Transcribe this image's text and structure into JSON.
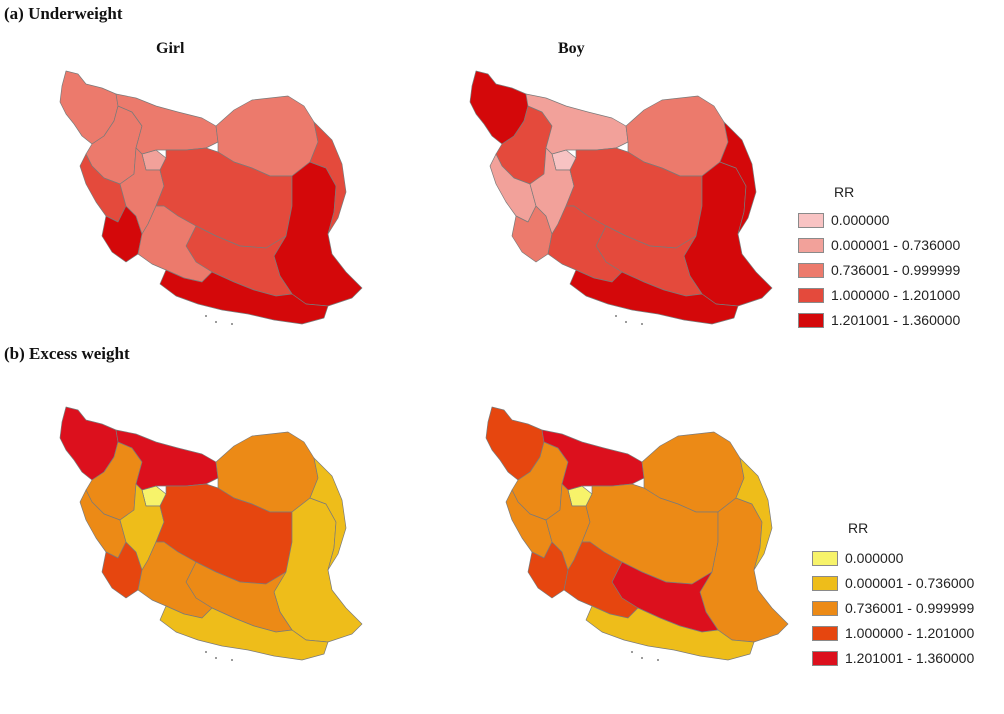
{
  "panels": [
    {
      "title": "(a) Underweight",
      "maps": [
        {
          "title": "Girl",
          "regions": [
            {
              "name": "nw-border",
              "cls": 2
            },
            {
              "name": "west-1",
              "cls": 2
            },
            {
              "name": "west-2",
              "cls": 3
            },
            {
              "name": "tehran",
              "cls": 1
            },
            {
              "name": "north",
              "cls": 2
            },
            {
              "name": "northeast",
              "cls": 2
            },
            {
              "name": "khuzestan",
              "cls": 4
            },
            {
              "name": "zagros",
              "cls": 2
            },
            {
              "name": "center",
              "cls": 3
            },
            {
              "name": "southeast",
              "cls": 4
            },
            {
              "name": "south",
              "cls": 3
            },
            {
              "name": "fars",
              "cls": 2
            },
            {
              "name": "hormozgan",
              "cls": 4
            },
            {
              "name": "east",
              "cls": 3
            }
          ]
        },
        {
          "title": "Boy",
          "regions": [
            {
              "name": "nw-border",
              "cls": 4
            },
            {
              "name": "west-1",
              "cls": 3
            },
            {
              "name": "west-2",
              "cls": 1
            },
            {
              "name": "tehran",
              "cls": 0
            },
            {
              "name": "north",
              "cls": 1
            },
            {
              "name": "northeast",
              "cls": 2
            },
            {
              "name": "khuzestan",
              "cls": 2
            },
            {
              "name": "zagros",
              "cls": 1
            },
            {
              "name": "center",
              "cls": 3
            },
            {
              "name": "southeast",
              "cls": 4
            },
            {
              "name": "south",
              "cls": 3
            },
            {
              "name": "fars",
              "cls": 3
            },
            {
              "name": "hormozgan",
              "cls": 4
            },
            {
              "name": "east",
              "cls": 4
            }
          ]
        }
      ],
      "legend": {
        "title": "RR",
        "items": [
          {
            "label": "0.000000",
            "color": "#f8c3c3"
          },
          {
            "label": "0.000001 - 0.736000",
            "color": "#f2a19a"
          },
          {
            "label": "0.736001 - 0.999999",
            "color": "#ec7a6c"
          },
          {
            "label": "1.000000 - 1.201000",
            "color": "#e44a3c"
          },
          {
            "label": "1.201001 - 1.360000",
            "color": "#d4080a"
          }
        ]
      }
    },
    {
      "title": "(b) Excess weight",
      "maps": [
        {
          "title": "",
          "regions": [
            {
              "name": "nw-border",
              "cls": 4
            },
            {
              "name": "west-1",
              "cls": 2
            },
            {
              "name": "west-2",
              "cls": 2
            },
            {
              "name": "tehran",
              "cls": 0
            },
            {
              "name": "north",
              "cls": 4
            },
            {
              "name": "northeast",
              "cls": 2
            },
            {
              "name": "khuzestan",
              "cls": 3
            },
            {
              "name": "zagros",
              "cls": 1
            },
            {
              "name": "center",
              "cls": 3
            },
            {
              "name": "southeast",
              "cls": 1
            },
            {
              "name": "south",
              "cls": 2
            },
            {
              "name": "fars",
              "cls": 2
            },
            {
              "name": "hormozgan",
              "cls": 1
            },
            {
              "name": "east",
              "cls": 1
            }
          ]
        },
        {
          "title": "",
          "regions": [
            {
              "name": "nw-border",
              "cls": 3
            },
            {
              "name": "west-1",
              "cls": 2
            },
            {
              "name": "west-2",
              "cls": 2
            },
            {
              "name": "tehran",
              "cls": 0
            },
            {
              "name": "north",
              "cls": 4
            },
            {
              "name": "northeast",
              "cls": 2
            },
            {
              "name": "khuzestan",
              "cls": 3
            },
            {
              "name": "zagros",
              "cls": 2
            },
            {
              "name": "center",
              "cls": 2
            },
            {
              "name": "southeast",
              "cls": 2
            },
            {
              "name": "south",
              "cls": 4
            },
            {
              "name": "fars",
              "cls": 3
            },
            {
              "name": "hormozgan",
              "cls": 1
            },
            {
              "name": "east",
              "cls": 1
            }
          ]
        }
      ],
      "legend": {
        "title": "RR",
        "items": [
          {
            "label": "0.000000",
            "color": "#f7f36a"
          },
          {
            "label": "0.000001 - 0.736000",
            "color": "#eebd1a"
          },
          {
            "label": "0.736001 - 0.999999",
            "color": "#ec8a16"
          },
          {
            "label": "1.000000 - 1.201000",
            "color": "#e6460f"
          },
          {
            "label": "1.201001 - 1.360000",
            "color": "#dc101d"
          }
        ]
      }
    }
  ],
  "colors": {
    "border": "#7a7a7a",
    "islands": "#555555"
  }
}
